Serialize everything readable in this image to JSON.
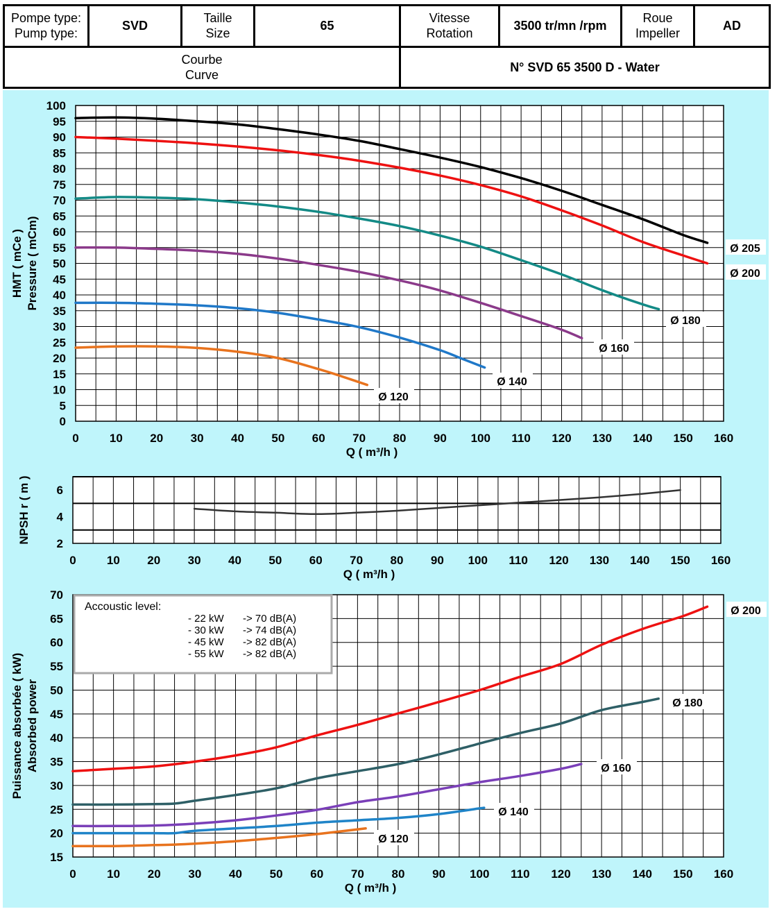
{
  "header": {
    "pump_type_label_fr": "Pompe type:",
    "pump_type_label_en": "Pump type:",
    "pump_type_value": "SVD",
    "size_label_fr": "Taille",
    "size_label_en": "Size",
    "size_value": "65",
    "speed_label_fr": "Vitesse",
    "speed_label_en": "Rotation",
    "speed_value": "3500 tr/mn /rpm",
    "impeller_label_fr": "Roue",
    "impeller_label_en": "Impeller",
    "impeller_value": "AD",
    "curve_label_fr": "Courbe",
    "curve_label_en": "Curve",
    "curve_value": "N° SVD 65 3500 D - Water"
  },
  "colors": {
    "background": "#bff5fb",
    "d205": "#000000",
    "d200": "#ee1111",
    "d180": "#138a86",
    "d160": "#8b3a8a",
    "d140": "#1f78c8",
    "d120": "#e8731e",
    "npsh": "#333333",
    "p200": "#ee1111",
    "p180": "#2e5f66",
    "p160": "#7a3fb8",
    "p140": "#1f84c8",
    "p120": "#e8731e"
  },
  "chart_data": [
    {
      "type": "line",
      "id": "head",
      "xlabel": "Q ( m³/h )",
      "ylabel": [
        "HMT ( mCe )",
        "Pressure ( mCm)"
      ],
      "xlim": [
        0,
        160
      ],
      "ylim": [
        0,
        100
      ],
      "xticks": [
        0,
        10,
        20,
        30,
        40,
        50,
        60,
        70,
        80,
        90,
        100,
        110,
        120,
        130,
        140,
        150,
        160
      ],
      "yticks": [
        0,
        5,
        10,
        15,
        20,
        25,
        30,
        35,
        40,
        45,
        50,
        55,
        60,
        65,
        70,
        75,
        80,
        85,
        90,
        95,
        100
      ],
      "grid": true,
      "series": [
        {
          "name": "Ø 205",
          "color_key": "d205",
          "x": [
            0,
            10,
            20,
            30,
            40,
            50,
            60,
            70,
            80,
            90,
            100,
            110,
            120,
            130,
            140,
            150,
            156
          ],
          "y": [
            96,
            96.2,
            95.8,
            95,
            94,
            92.5,
            90.8,
            88.8,
            86.2,
            83.5,
            80.5,
            77,
            73,
            68.5,
            64,
            59,
            56.5
          ]
        },
        {
          "name": "Ø 200",
          "color_key": "d200",
          "x": [
            0,
            10,
            20,
            30,
            40,
            50,
            60,
            70,
            80,
            90,
            100,
            110,
            120,
            130,
            140,
            150,
            156
          ],
          "y": [
            90,
            89.5,
            88.8,
            88,
            87,
            85.8,
            84.3,
            82.5,
            80.3,
            77.8,
            74.8,
            71.2,
            66.8,
            62,
            56.8,
            52.5,
            50
          ]
        },
        {
          "name": "Ø 180",
          "color_key": "d180",
          "x": [
            0,
            10,
            20,
            30,
            40,
            50,
            60,
            70,
            80,
            90,
            100,
            110,
            120,
            130,
            140,
            144
          ],
          "y": [
            70.5,
            71,
            70.8,
            70.3,
            69.3,
            68,
            66.3,
            64.2,
            61.8,
            58.8,
            55.3,
            51,
            46.5,
            41.5,
            37,
            35.5
          ]
        },
        {
          "name": "Ø 160",
          "color_key": "d160",
          "x": [
            0,
            10,
            20,
            30,
            40,
            50,
            60,
            70,
            80,
            90,
            100,
            110,
            120,
            125
          ],
          "y": [
            55,
            55,
            54.6,
            54,
            53,
            51.5,
            49.5,
            47.3,
            44.6,
            41.4,
            37.5,
            33.3,
            29,
            26.3
          ]
        },
        {
          "name": "Ø 140",
          "color_key": "d140",
          "x": [
            0,
            10,
            20,
            30,
            40,
            50,
            60,
            70,
            80,
            90,
            95,
            101
          ],
          "y": [
            37.5,
            37.5,
            37.2,
            36.7,
            35.8,
            34.3,
            32.2,
            29.8,
            26.5,
            22.5,
            20,
            17
          ]
        },
        {
          "name": "Ø 120",
          "color_key": "d120",
          "x": [
            0,
            10,
            20,
            30,
            40,
            50,
            60,
            65,
            72
          ],
          "y": [
            23.3,
            23.7,
            23.7,
            23.2,
            22,
            20,
            16.5,
            14.5,
            11.5
          ]
        }
      ]
    },
    {
      "type": "line",
      "id": "npsh",
      "xlabel": "Q ( m³/h )",
      "ylabel": "NPSH r ( m )",
      "xlim": [
        0,
        160
      ],
      "ylim": [
        2,
        7
      ],
      "xticks": [
        0,
        10,
        20,
        30,
        40,
        50,
        60,
        70,
        80,
        90,
        100,
        110,
        120,
        130,
        140,
        150,
        160
      ],
      "yticks": [
        2,
        4,
        6
      ],
      "grid": true,
      "series": [
        {
          "name": "NPSH r",
          "color_key": "npsh",
          "x": [
            30,
            40,
            50,
            60,
            70,
            80,
            90,
            100,
            110,
            120,
            130,
            140,
            150
          ],
          "y": [
            4.6,
            4.4,
            4.3,
            4.2,
            4.3,
            4.45,
            4.65,
            4.85,
            5.05,
            5.25,
            5.45,
            5.7,
            6.0
          ]
        }
      ]
    },
    {
      "type": "line",
      "id": "power",
      "xlabel": "Q ( m³/h )",
      "ylabel": [
        "Puissance absorbée ( kW)",
        "Absorbed power"
      ],
      "xlim": [
        0,
        160
      ],
      "ylim": [
        15,
        70
      ],
      "xticks": [
        0,
        10,
        20,
        30,
        40,
        50,
        60,
        70,
        80,
        90,
        100,
        110,
        120,
        130,
        140,
        150,
        160
      ],
      "yticks": [
        15,
        20,
        25,
        30,
        35,
        40,
        45,
        50,
        55,
        60,
        65,
        70
      ],
      "grid": true,
      "series": [
        {
          "name": "Ø 200",
          "color_key": "p200",
          "x": [
            0,
            10,
            20,
            30,
            40,
            50,
            60,
            70,
            80,
            90,
            100,
            110,
            120,
            130,
            140,
            150,
            156
          ],
          "y": [
            33,
            33.5,
            34,
            35,
            36.3,
            38,
            40.5,
            42.7,
            45.1,
            47.5,
            50,
            52.8,
            55.5,
            59.5,
            62.8,
            65.5,
            67.5
          ]
        },
        {
          "name": "Ø 180",
          "color_key": "p180",
          "x": [
            0,
            10,
            20,
            25,
            30,
            40,
            50,
            60,
            70,
            80,
            90,
            100,
            110,
            120,
            130,
            140,
            144
          ],
          "y": [
            26,
            26,
            26.1,
            26.2,
            26.8,
            28,
            29.4,
            31.5,
            33,
            34.5,
            36.5,
            38.8,
            41,
            43,
            45.8,
            47.5,
            48.2
          ]
        },
        {
          "name": "Ø 160",
          "color_key": "p160",
          "x": [
            0,
            10,
            20,
            30,
            40,
            50,
            60,
            70,
            80,
            90,
            100,
            110,
            120,
            125
          ],
          "y": [
            21.5,
            21.5,
            21.6,
            22,
            22.7,
            23.7,
            24.9,
            26.5,
            27.7,
            29.2,
            30.7,
            32,
            33.5,
            34.5
          ]
        },
        {
          "name": "Ø 140",
          "color_key": "p140",
          "x": [
            0,
            10,
            20,
            25,
            30,
            40,
            50,
            60,
            70,
            80,
            90,
            100,
            101
          ],
          "y": [
            20,
            20,
            20,
            20,
            20.5,
            21,
            21.5,
            22.2,
            22.7,
            23.2,
            24,
            25.2,
            25.3
          ]
        },
        {
          "name": "Ø 120",
          "color_key": "p120",
          "x": [
            0,
            10,
            20,
            25,
            30,
            40,
            50,
            60,
            72
          ],
          "y": [
            17.3,
            17.3,
            17.5,
            17.6,
            17.8,
            18.3,
            19,
            19.8,
            21
          ]
        }
      ]
    }
  ],
  "acoustic": {
    "title": "Accoustic level:",
    "rows": [
      {
        "power": "- 22 kW",
        "level": "-> 70 dB(A)"
      },
      {
        "power": "- 30 kW",
        "level": "-> 74 dB(A)"
      },
      {
        "power": "- 45 kW",
        "level": "-> 82 dB(A)"
      },
      {
        "power": "- 55 kW",
        "level": "-> 82 dB(A)"
      }
    ]
  }
}
